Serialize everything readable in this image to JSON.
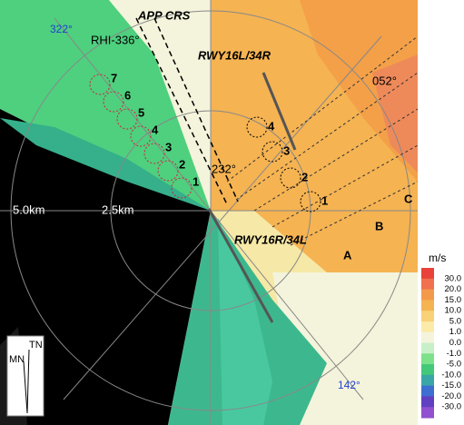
{
  "labels": {
    "app_crs": "APP CRS",
    "rhi": "RHI-336°",
    "az_322": "322°",
    "az_052": "052°",
    "az_232": "232°",
    "az_142": "142°",
    "rwy_16l": "RWY16L/34R",
    "rwy_16r": "RWY16R/34L",
    "range_5": "5.0km",
    "range_25": "2.5km",
    "a": "A",
    "b": "B",
    "c": "C",
    "tn": "TN",
    "mn": "MN"
  },
  "left_points": [
    "1",
    "2",
    "3",
    "4",
    "5",
    "6",
    "7"
  ],
  "right_points": [
    "1",
    "2",
    "3",
    "4"
  ],
  "legend": {
    "unit": "m/s",
    "ticks": [
      "30.0",
      "20.0",
      "15.0",
      "10.0",
      "5.0",
      "1.0",
      "0.0",
      "-1.0",
      "-5.0",
      "-10.0",
      "-15.0",
      "-20.0",
      "-30.0"
    ],
    "colors": [
      "#e8423a",
      "#f07050",
      "#f39a4a",
      "#f5b352",
      "#f8d178",
      "#fbeaa8",
      "#f4f4dc",
      "#c8f0c8",
      "#7de08a",
      "#44c87a",
      "#3aa7a6",
      "#3e6fd0",
      "#6040c0",
      "#9050d0"
    ]
  }
}
